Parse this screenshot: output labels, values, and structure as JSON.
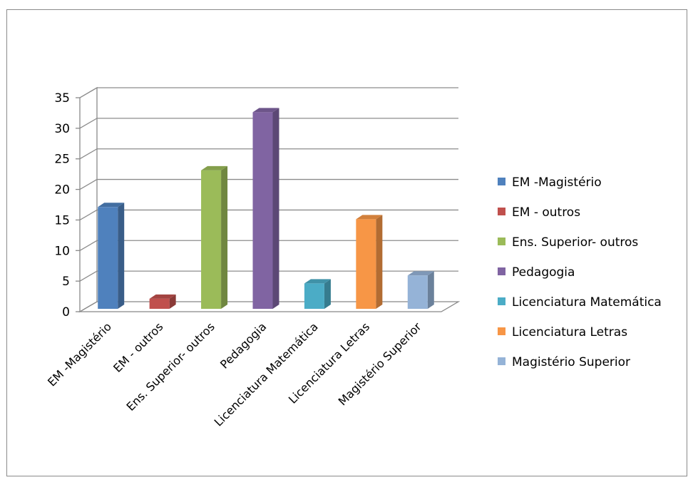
{
  "chart_data": {
    "type": "bar",
    "title": "",
    "xlabel": "",
    "ylabel": "",
    "ylim": [
      0,
      35
    ],
    "yticks": [
      "0",
      "5",
      "10",
      "15",
      "20",
      "25",
      "30",
      "35"
    ],
    "grid": true,
    "legend_position": "right",
    "categories": [
      "EM -Magistério",
      "EM - outros",
      "Ens. Superior- outros",
      "Pedagogia",
      "Licenciatura Matemática",
      "Licenciatura Letras",
      "Magistério Superior"
    ],
    "values": [
      17,
      2,
      23,
      32.5,
      4.5,
      15,
      5.8
    ],
    "colors": [
      "#4F81BD",
      "#C0504D",
      "#9BBB59",
      "#8064A2",
      "#4BACC6",
      "#F79646",
      "#95B3D7"
    ],
    "legend": [
      "EM -Magistério",
      "EM - outros",
      "Ens. Superior- outros",
      "Pedagogia",
      "Licenciatura Matemática",
      "Licenciatura Letras",
      "Magistério Superior"
    ]
  }
}
